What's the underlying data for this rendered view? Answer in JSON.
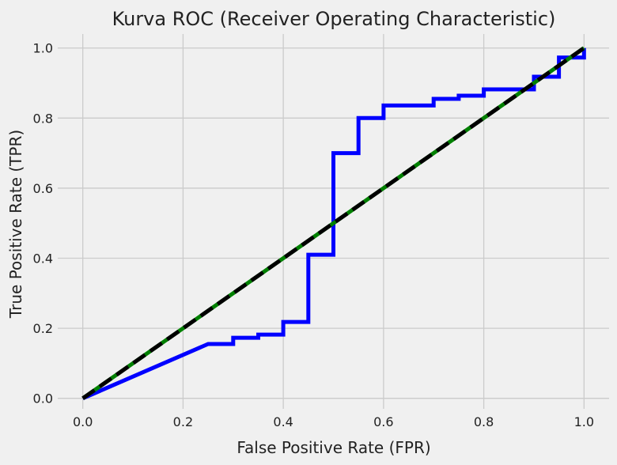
{
  "chart_data": {
    "type": "line",
    "title": "Kurva ROC (Receiver Operating Characteristic)",
    "xlabel": "False Positive Rate (FPR)",
    "ylabel": "True Positive Rate (TPR)",
    "xlim": [
      -0.05,
      1.05
    ],
    "ylim": [
      -0.03,
      1.04
    ],
    "xticks": [
      0.0,
      0.2,
      0.4,
      0.6,
      0.8,
      1.0
    ],
    "xtick_labels": [
      "0.0",
      "0.2",
      "0.4",
      "0.6",
      "0.8",
      "1.0"
    ],
    "yticks": [
      0.0,
      0.2,
      0.4,
      0.6,
      0.8,
      1.0
    ],
    "ytick_labels": [
      "0.0",
      "0.2",
      "0.4",
      "0.6",
      "0.8",
      "1.0"
    ],
    "grid": true,
    "legend": false,
    "series": [
      {
        "color": "#0000ff",
        "style": "solid",
        "x": [
          0.0,
          0.25,
          0.25,
          0.3,
          0.3,
          0.35,
          0.35,
          0.4,
          0.4,
          0.45,
          0.45,
          0.5,
          0.5,
          0.55,
          0.55,
          0.6,
          0.6,
          0.7,
          0.7,
          0.75,
          0.75,
          0.8,
          0.8,
          0.9,
          0.9,
          0.95,
          0.95,
          1.0,
          1.0
        ],
        "y": [
          0.0,
          0.155,
          0.155,
          0.155,
          0.173,
          0.173,
          0.182,
          0.182,
          0.218,
          0.218,
          0.41,
          0.41,
          0.7,
          0.7,
          0.8,
          0.8,
          0.836,
          0.836,
          0.855,
          0.855,
          0.864,
          0.864,
          0.882,
          0.882,
          0.918,
          0.918,
          0.973,
          0.973,
          1.0
        ]
      },
      {
        "color": "#008000",
        "style": "solid",
        "x": [
          0.0,
          1.0
        ],
        "y": [
          0.0,
          1.0
        ]
      },
      {
        "color": "#000000",
        "style": "dashed",
        "x": [
          0.0,
          1.0
        ],
        "y": [
          0.0,
          1.0
        ]
      }
    ]
  }
}
